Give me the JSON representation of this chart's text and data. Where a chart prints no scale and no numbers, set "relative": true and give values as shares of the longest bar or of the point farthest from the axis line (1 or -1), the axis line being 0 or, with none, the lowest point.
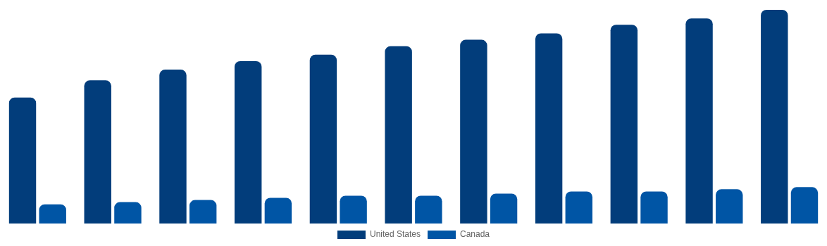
{
  "chart_data": {
    "type": "bar",
    "relative": true,
    "categories": [
      null,
      null,
      null,
      null,
      null,
      null,
      null,
      null,
      null,
      null,
      null
    ],
    "series": [
      {
        "name": "United States",
        "color": "#023d7b",
        "values": [
          0.59,
          0.67,
          0.72,
          0.76,
          0.79,
          0.83,
          0.86,
          0.89,
          0.93,
          0.96,
          1
        ]
      },
      {
        "name": "Canada",
        "color": "#0055a5",
        "values": [
          0.09,
          0.1,
          0.11,
          0.12,
          0.13,
          0.13,
          0.14,
          0.15,
          0.15,
          0.16,
          0.17
        ]
      }
    ],
    "legend": "bottom"
  }
}
